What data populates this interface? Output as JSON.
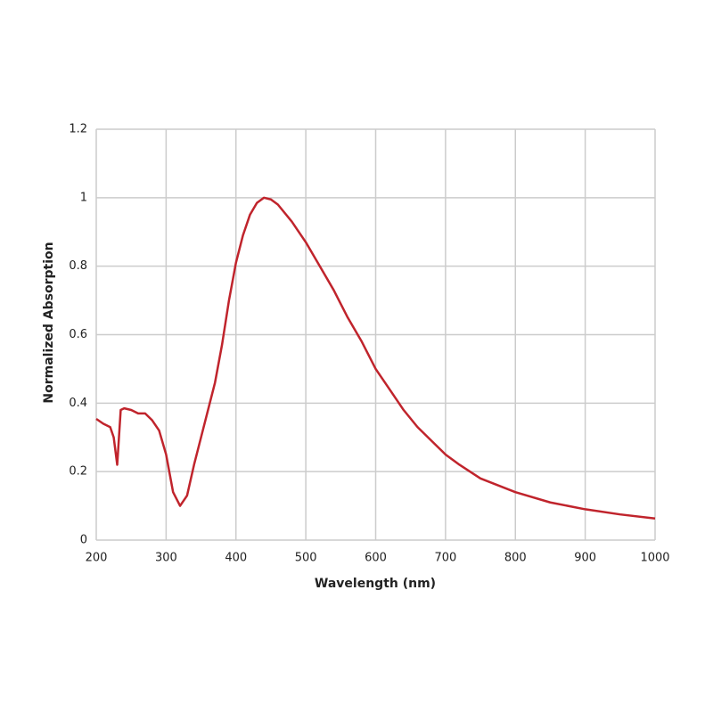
{
  "chart_data": {
    "type": "line",
    "x_label": "Wavelength (nm)",
    "y_label": "Normalized Absorption",
    "x": [
      200,
      210,
      220,
      225,
      230,
      235,
      240,
      250,
      260,
      270,
      280,
      290,
      300,
      310,
      320,
      330,
      340,
      350,
      360,
      370,
      380,
      390,
      400,
      410,
      420,
      430,
      440,
      450,
      460,
      480,
      500,
      520,
      540,
      560,
      580,
      600,
      620,
      640,
      660,
      680,
      700,
      720,
      750,
      800,
      850,
      900,
      950,
      1000
    ],
    "series": [
      {
        "color": "#c0242c",
        "values": [
          0.354,
          0.34,
          0.33,
          0.3,
          0.22,
          0.38,
          0.385,
          0.38,
          0.37,
          0.37,
          0.35,
          0.32,
          0.25,
          0.14,
          0.1,
          0.13,
          0.22,
          0.3,
          0.38,
          0.46,
          0.57,
          0.7,
          0.81,
          0.89,
          0.95,
          0.985,
          1.0,
          0.995,
          0.98,
          0.93,
          0.87,
          0.8,
          0.73,
          0.65,
          0.58,
          0.5,
          0.44,
          0.38,
          0.33,
          0.29,
          0.25,
          0.22,
          0.18,
          0.14,
          0.11,
          0.09,
          0.075,
          0.063
        ]
      }
    ],
    "xlim": [
      200,
      1000
    ],
    "xticks": [
      200,
      300,
      400,
      500,
      600,
      700,
      800,
      900,
      1000
    ],
    "ylim": [
      0,
      1.2
    ],
    "yticks": [
      0,
      0.2,
      0.4,
      0.6,
      0.8,
      1,
      1.2
    ],
    "grid": true
  }
}
